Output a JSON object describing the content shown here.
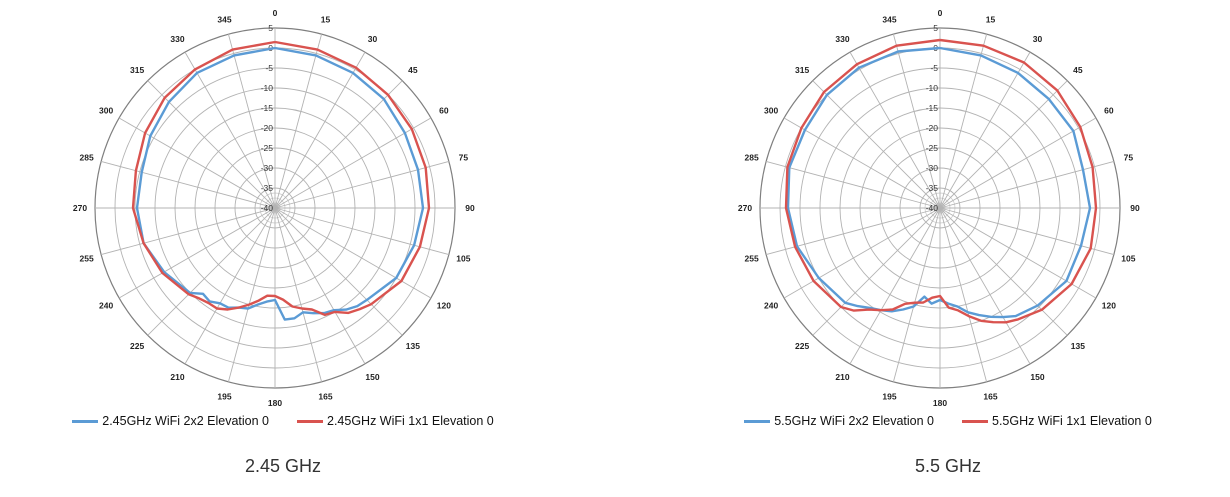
{
  "chart_data": [
    {
      "type": "polar-line",
      "caption": "2.45 GHz",
      "angle_labels": [
        "0",
        "15",
        "30",
        "45",
        "60",
        "75",
        "90",
        "105",
        "120",
        "135",
        "150",
        "165",
        "180",
        "195",
        "210",
        "225",
        "240",
        "255",
        "270",
        "285",
        "300",
        "315",
        "330",
        "345"
      ],
      "radial_labels": [
        "5",
        "0",
        "-5",
        "-10",
        "-15",
        "-20",
        "-25",
        "-30",
        "-35",
        "-40"
      ],
      "rlim": [
        -40,
        5
      ],
      "grid": true,
      "legend_position": "bottom",
      "angles": [
        0,
        15,
        30,
        45,
        60,
        75,
        90,
        105,
        120,
        135,
        140,
        145,
        150,
        155,
        160,
        165,
        170,
        175,
        180,
        185,
        190,
        195,
        200,
        205,
        210,
        215,
        220,
        225,
        240,
        255,
        270,
        285,
        300,
        315,
        330,
        345
      ],
      "series": [
        {
          "name": "2.45GHz WiFi 2x2 Elevation 0",
          "color": "#5b9bd5",
          "values": [
            0,
            -0.5,
            -1,
            -1.5,
            -2.5,
            -3,
            -3,
            -4,
            -5,
            -7.5,
            -8,
            -9,
            -10.5,
            -11,
            -12,
            -13,
            -12,
            -12,
            -17,
            -16.5,
            -15.5,
            -14,
            -13.5,
            -12.5,
            -12.5,
            -11.5,
            -12,
            -10,
            -8,
            -6,
            -5.5,
            -5.5,
            -4,
            -2.5,
            -1,
            -0.5
          ]
        },
        {
          "name": "2.45GHz WiFi 1x1 Elevation 0",
          "color": "#d9534f",
          "values": [
            1.5,
            1,
            0.5,
            0,
            -0.5,
            -1,
            -1.5,
            -2.5,
            -3.5,
            -6,
            -7,
            -8,
            -10,
            -10.5,
            -13,
            -14,
            -15,
            -17,
            -18,
            -18,
            -16.5,
            -15,
            -13.5,
            -12,
            -11,
            -11,
            -10.5,
            -9.5,
            -7.5,
            -6,
            -4.5,
            -4,
            -2.5,
            -1,
            0,
            1
          ]
        }
      ]
    },
    {
      "type": "polar-line",
      "caption": "5.5 GHz",
      "angle_labels": [
        "0",
        "15",
        "30",
        "45",
        "60",
        "75",
        "90",
        "105",
        "120",
        "135",
        "150",
        "165",
        "180",
        "195",
        "210",
        "225",
        "240",
        "255",
        "270",
        "285",
        "300",
        "315",
        "330",
        "345"
      ],
      "radial_labels": [
        "5",
        "0",
        "-5",
        "-10",
        "-15",
        "-20",
        "-25",
        "-30",
        "-35",
        "-40"
      ],
      "rlim": [
        -40,
        5
      ],
      "grid": true,
      "legend_position": "bottom",
      "angles": [
        0,
        15,
        30,
        45,
        60,
        75,
        90,
        105,
        120,
        135,
        145,
        150,
        155,
        160,
        165,
        170,
        175,
        180,
        185,
        190,
        195,
        200,
        205,
        210,
        215,
        220,
        225,
        240,
        255,
        270,
        285,
        300,
        315,
        330,
        345
      ],
      "series": [
        {
          "name": "5.5GHz WiFi 2x2 Elevation 0",
          "color": "#5b9bd5",
          "values": [
            0,
            -0.5,
            -1,
            -1.5,
            -1.5,
            -3,
            -2.5,
            -3.5,
            -3.5,
            -5.5,
            -7,
            -8.5,
            -10,
            -11.5,
            -13,
            -15,
            -16,
            -17,
            -16,
            -17.5,
            -14.5,
            -13,
            -11.5,
            -10.5,
            -9.5,
            -8,
            -6.5,
            -5,
            -3,
            -2,
            -1,
            -1,
            0,
            0.5,
            0.5
          ]
        },
        {
          "name": "5.5GHz WiFi 1x1 Elevation 0",
          "color": "#d9534f",
          "values": [
            2,
            2,
            2,
            1.5,
            0.5,
            -0.5,
            -1,
            -1,
            -2,
            -4,
            -6,
            -7,
            -8.5,
            -10,
            -12,
            -14,
            -15,
            -18,
            -17.5,
            -16,
            -15.5,
            -14.5,
            -12,
            -10.5,
            -9,
            -6.5,
            -5,
            -3.5,
            -2.5,
            -1.5,
            -0.5,
            0,
            1,
            1.5,
            2
          ]
        }
      ]
    }
  ]
}
